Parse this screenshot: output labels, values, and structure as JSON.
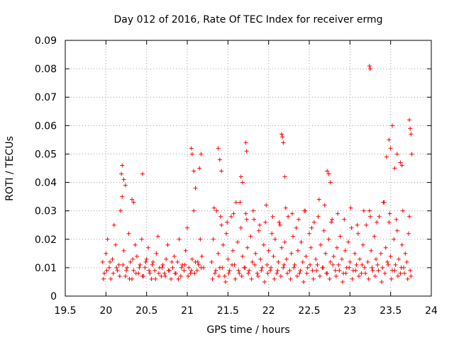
{
  "chart_data": {
    "type": "scatter",
    "title": "Day 012 of 2016, Rate Of TEC Index for receiver ermg",
    "xlabel": "GPS time / hours",
    "ylabel": "ROTI / TECUs",
    "xlim": [
      19.5,
      24
    ],
    "ylim": [
      0,
      0.09
    ],
    "x_ticks": [
      19.5,
      20,
      20.5,
      21,
      21.5,
      22,
      22.5,
      23,
      23.5,
      24
    ],
    "x_tick_labels": [
      "19.5",
      "20",
      "20.5",
      "21",
      "21.5",
      "22",
      "22.5",
      "23",
      "23.5",
      "24"
    ],
    "y_ticks": [
      0,
      0.01,
      0.02,
      0.03,
      0.04,
      0.05,
      0.06,
      0.07,
      0.08,
      0.09
    ],
    "y_tick_labels": [
      "0",
      "0.01",
      "0.02",
      "0.03",
      "0.04",
      "0.05",
      "0.06",
      "0.07",
      "0.08",
      "0.09"
    ],
    "grid": true,
    "marker": "+",
    "marker_color": "#ff0000",
    "series": [
      {
        "name": "ROTI",
        "x": [
          19.96,
          19.98,
          20.0,
          20.02,
          20.04,
          20.06,
          20.08,
          20.1,
          20.12,
          20.14,
          20.16,
          20.18,
          20.2,
          20.22,
          20.24,
          20.26,
          20.28,
          20.3,
          20.32,
          20.34,
          20.36,
          20.38,
          20.4,
          20.42,
          20.44,
          20.46,
          20.48,
          20.5,
          20.52,
          20.54,
          20.56,
          20.58,
          20.6,
          20.62,
          20.64,
          20.66,
          20.68,
          20.7,
          20.72,
          20.74,
          20.76,
          20.78,
          20.8,
          20.82,
          20.84,
          20.86,
          20.88,
          20.9,
          20.92,
          20.94,
          20.96,
          20.98,
          21.0,
          21.02,
          21.04,
          21.06,
          21.08,
          21.1,
          21.12,
          21.14,
          21.16,
          21.18,
          21.2,
          19.97,
          20.01,
          20.05,
          20.09,
          20.13,
          20.17,
          20.21,
          20.25,
          20.29,
          20.33,
          20.37,
          20.41,
          20.45,
          20.49,
          20.53,
          20.57,
          20.61,
          20.65,
          20.69,
          20.73,
          20.77,
          20.81,
          20.85,
          20.89,
          20.93,
          20.97,
          21.01,
          21.05,
          21.09,
          21.13,
          21.17,
          20.19,
          20.2,
          20.22,
          20.24,
          20.32,
          20.34,
          20.45,
          21.05,
          21.06,
          21.08,
          21.1,
          21.15,
          21.17,
          21.3,
          21.32,
          21.34,
          21.36,
          21.38,
          21.4,
          21.42,
          21.44,
          21.46,
          21.48,
          21.5,
          21.52,
          21.54,
          21.56,
          21.58,
          21.6,
          21.62,
          21.64,
          21.66,
          21.68,
          21.7,
          21.72,
          21.74,
          21.76,
          21.78,
          21.8,
          21.82,
          21.84,
          21.86,
          21.88,
          21.9,
          21.92,
          21.94,
          21.96,
          21.98,
          22.0,
          22.02,
          22.04,
          22.06,
          22.08,
          22.1,
          22.12,
          22.14,
          22.16,
          22.18,
          22.2,
          22.22,
          22.24,
          22.26,
          22.28,
          22.3,
          22.32,
          22.34,
          22.36,
          22.38,
          22.4,
          22.42,
          22.44,
          22.46,
          22.48,
          22.5,
          22.52,
          22.54,
          22.56,
          22.58,
          22.6,
          22.62,
          22.64,
          22.66,
          22.68,
          22.7,
          22.72,
          22.74,
          22.76,
          22.78,
          22.8,
          22.82,
          22.84,
          22.86,
          22.88,
          22.9,
          22.92,
          22.94,
          22.96,
          22.98,
          23.0,
          23.02,
          23.04,
          23.06,
          23.08,
          23.1,
          23.12,
          23.14,
          23.16,
          23.18,
          23.2,
          23.22,
          23.24,
          23.26,
          23.28,
          23.3,
          23.32,
          23.34,
          23.36,
          23.38,
          23.4,
          23.42,
          23.44,
          23.46,
          23.48,
          23.5,
          23.52,
          23.54,
          23.56,
          23.58,
          23.6,
          23.62,
          23.64,
          23.66,
          23.68,
          23.7,
          23.72,
          23.74,
          21.31,
          21.35,
          21.39,
          21.43,
          21.47,
          21.51,
          21.55,
          21.59,
          21.63,
          21.67,
          21.71,
          21.75,
          21.79,
          21.83,
          21.87,
          21.91,
          21.95,
          21.99,
          22.03,
          22.07,
          22.11,
          22.15,
          22.19,
          22.23,
          22.27,
          22.31,
          22.35,
          22.39,
          22.43,
          22.47,
          22.51,
          22.55,
          22.59,
          22.63,
          22.67,
          22.71,
          22.75,
          22.79,
          22.83,
          22.87,
          22.91,
          22.95,
          22.99,
          23.03,
          23.07,
          23.11,
          23.15,
          23.19,
          23.23,
          23.27,
          23.31,
          23.35,
          23.39,
          23.43,
          23.47,
          23.51,
          23.55,
          23.59,
          23.63,
          23.67,
          23.71,
          23.75,
          21.33,
          21.41,
          21.49,
          21.57,
          21.65,
          21.73,
          21.81,
          21.89,
          21.97,
          22.05,
          22.13,
          22.21,
          22.29,
          22.37,
          22.45,
          22.53,
          22.61,
          22.69,
          22.77,
          22.85,
          22.93,
          23.01,
          23.09,
          23.17,
          23.25,
          23.33,
          23.41,
          23.49,
          23.57,
          23.65,
          23.73,
          21.38,
          21.4,
          21.42,
          21.66,
          21.68,
          21.72,
          21.73,
          22.16,
          22.17,
          22.18,
          22.2,
          22.72,
          22.74,
          22.76,
          23.24,
          23.25,
          23.45,
          23.48,
          23.5,
          23.52,
          23.55,
          23.58,
          23.62,
          23.64,
          23.73,
          23.74,
          23.75,
          23.76
        ],
        "y": [
          0.012,
          0.008,
          0.015,
          0.02,
          0.01,
          0.006,
          0.013,
          0.025,
          0.018,
          0.009,
          0.011,
          0.03,
          0.035,
          0.016,
          0.007,
          0.01,
          0.022,
          0.012,
          0.006,
          0.009,
          0.018,
          0.014,
          0.008,
          0.011,
          0.02,
          0.007,
          0.01,
          0.013,
          0.017,
          0.008,
          0.006,
          0.012,
          0.009,
          0.015,
          0.021,
          0.01,
          0.007,
          0.011,
          0.008,
          0.013,
          0.018,
          0.009,
          0.006,
          0.01,
          0.014,
          0.008,
          0.012,
          0.02,
          0.007,
          0.011,
          0.009,
          0.016,
          0.024,
          0.01,
          0.008,
          0.013,
          0.03,
          0.012,
          0.009,
          0.011,
          0.02,
          0.014,
          0.01,
          0.006,
          0.009,
          0.012,
          0.008,
          0.01,
          0.007,
          0.011,
          0.009,
          0.006,
          0.013,
          0.008,
          0.01,
          0.007,
          0.012,
          0.009,
          0.011,
          0.006,
          0.008,
          0.01,
          0.007,
          0.009,
          0.012,
          0.008,
          0.006,
          0.01,
          0.011,
          0.007,
          0.009,
          0.008,
          0.012,
          0.01,
          0.043,
          0.046,
          0.041,
          0.039,
          0.034,
          0.033,
          0.043,
          0.052,
          0.05,
          0.044,
          0.038,
          0.045,
          0.05,
          0.012,
          0.02,
          0.008,
          0.03,
          0.015,
          0.01,
          0.025,
          0.018,
          0.007,
          0.022,
          0.013,
          0.009,
          0.028,
          0.016,
          0.011,
          0.033,
          0.019,
          0.008,
          0.024,
          0.014,
          0.01,
          0.029,
          0.017,
          0.009,
          0.021,
          0.012,
          0.027,
          0.015,
          0.008,
          0.023,
          0.013,
          0.01,
          0.018,
          0.026,
          0.011,
          0.016,
          0.009,
          0.022,
          0.014,
          0.02,
          0.008,
          0.012,
          0.025,
          0.017,
          0.01,
          0.019,
          0.013,
          0.028,
          0.009,
          0.015,
          0.021,
          0.011,
          0.024,
          0.016,
          0.008,
          0.019,
          0.012,
          0.03,
          0.014,
          0.01,
          0.022,
          0.017,
          0.009,
          0.026,
          0.013,
          0.011,
          0.034,
          0.018,
          0.01,
          0.023,
          0.015,
          0.008,
          0.02,
          0.012,
          0.027,
          0.014,
          0.009,
          0.017,
          0.011,
          0.021,
          0.013,
          0.008,
          0.016,
          0.01,
          0.019,
          0.012,
          0.024,
          0.009,
          0.015,
          0.011,
          0.022,
          0.013,
          0.008,
          0.018,
          0.01,
          0.025,
          0.012,
          0.03,
          0.016,
          0.009,
          0.021,
          0.013,
          0.011,
          0.028,
          0.015,
          0.01,
          0.033,
          0.017,
          0.012,
          0.026,
          0.014,
          0.009,
          0.02,
          0.011,
          0.023,
          0.013,
          0.008,
          0.018,
          0.01,
          0.015,
          0.012,
          0.022,
          0.009,
          0.006,
          0.009,
          0.007,
          0.01,
          0.005,
          0.008,
          0.011,
          0.006,
          0.009,
          0.007,
          0.01,
          0.008,
          0.006,
          0.011,
          0.007,
          0.009,
          0.005,
          0.008,
          0.01,
          0.006,
          0.009,
          0.007,
          0.011,
          0.008,
          0.006,
          0.01,
          0.007,
          0.009,
          0.005,
          0.008,
          0.011,
          0.006,
          0.009,
          0.007,
          0.01,
          0.008,
          0.006,
          0.011,
          0.007,
          0.009,
          0.005,
          0.008,
          0.01,
          0.006,
          0.009,
          0.007,
          0.011,
          0.008,
          0.006,
          0.01,
          0.007,
          0.009,
          0.005,
          0.008,
          0.011,
          0.006,
          0.009,
          0.007,
          0.01,
          0.008,
          0.006,
          0.007,
          0.031,
          0.028,
          0.026,
          0.029,
          0.033,
          0.027,
          0.03,
          0.025,
          0.032,
          0.028,
          0.026,
          0.031,
          0.029,
          0.027,
          0.03,
          0.024,
          0.028,
          0.032,
          0.026,
          0.029,
          0.027,
          0.031,
          0.025,
          0.03,
          0.028,
          0.026,
          0.033,
          0.029,
          0.027,
          0.03,
          0.028,
          0.052,
          0.048,
          0.044,
          0.042,
          0.04,
          0.054,
          0.051,
          0.057,
          0.056,
          0.054,
          0.042,
          0.044,
          0.043,
          0.04,
          0.081,
          0.08,
          0.049,
          0.055,
          0.052,
          0.06,
          0.045,
          0.05,
          0.047,
          0.046,
          0.062,
          0.059,
          0.057,
          0.05
        ]
      }
    ]
  }
}
